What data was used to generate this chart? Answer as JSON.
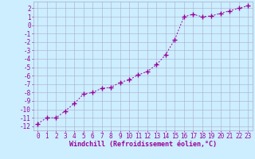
{
  "x": [
    0,
    1,
    2,
    3,
    4,
    5,
    6,
    7,
    8,
    9,
    10,
    11,
    12,
    13,
    14,
    15,
    16,
    17,
    18,
    19,
    20,
    21,
    22,
    23
  ],
  "y": [
    -11.7,
    -11.0,
    -11.0,
    -10.2,
    -9.3,
    -8.2,
    -8.0,
    -7.5,
    -7.4,
    -6.8,
    -6.5,
    -5.9,
    -5.5,
    -4.7,
    -3.5,
    -1.7,
    1.0,
    1.3,
    1.0,
    1.1,
    1.4,
    1.7,
    2.0,
    2.3
  ],
  "line_color": "#990099",
  "marker": "+",
  "marker_size": 4,
  "marker_lw": 1.0,
  "xlabel": "Windchill (Refroidissement éolien,°C)",
  "ylabel_ticks": [
    2,
    1,
    0,
    -1,
    -2,
    -3,
    -4,
    -5,
    -6,
    -7,
    -8,
    -9,
    -10,
    -11,
    -12
  ],
  "xlim": [
    -0.5,
    23.5
  ],
  "ylim": [
    -12.5,
    2.8
  ],
  "bg_color": "#cceeff",
  "grid_color": "#aaaacc",
  "tick_color": "#990099",
  "label_color": "#990099",
  "font_size": 5.5,
  "xlabel_fontsize": 6.0,
  "xlabel_fontweight": "bold",
  "line_width": 0.7
}
